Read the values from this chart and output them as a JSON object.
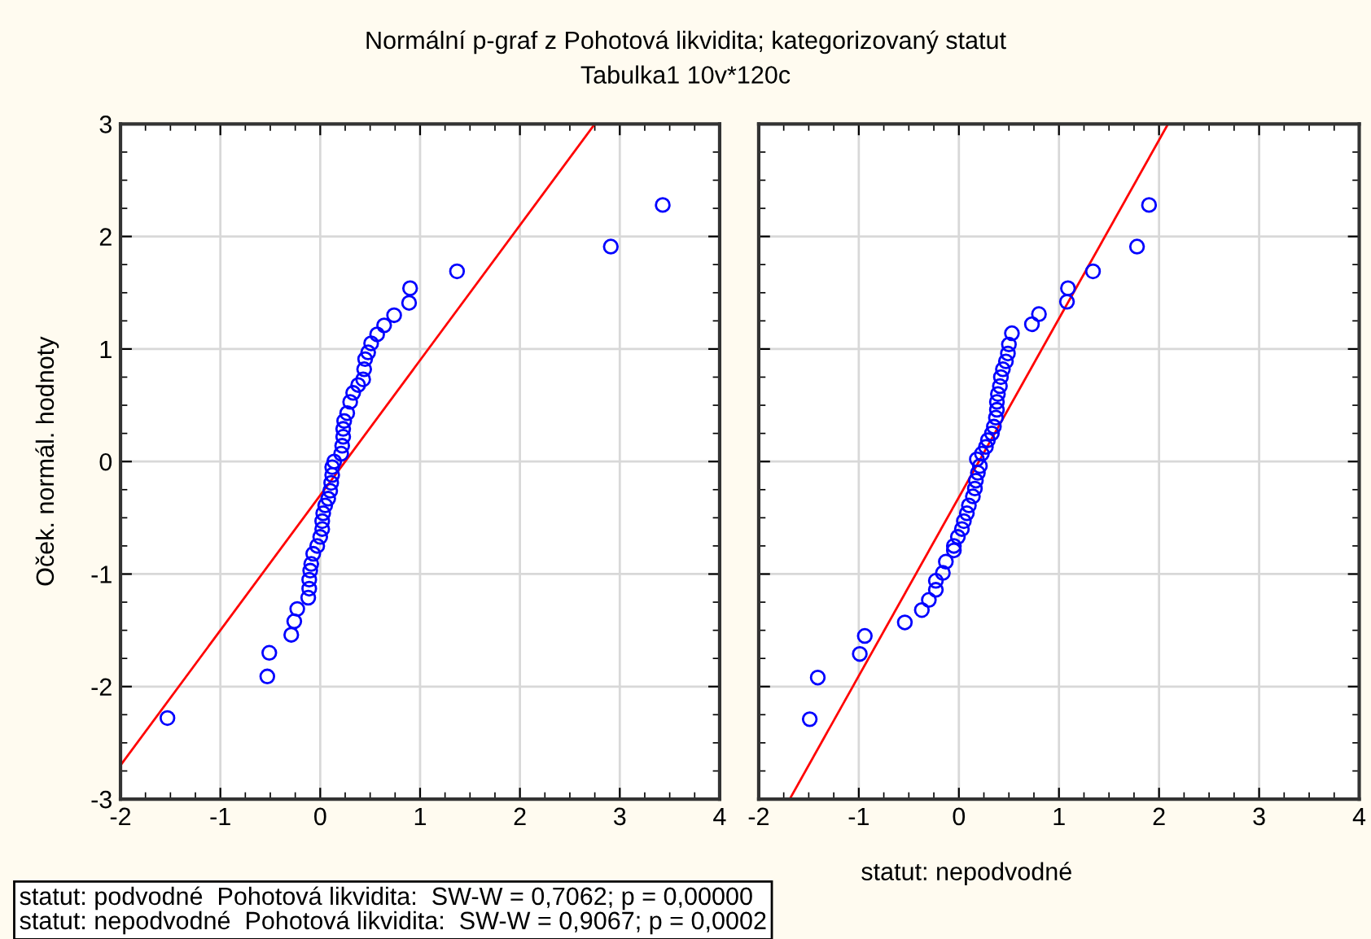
{
  "chart_data": [
    {
      "type": "scatter",
      "title": "Normální p-graf z Pohotová likvidita; kategorizovaný statut",
      "subtitle": "Tabulka1 10v*120c",
      "ylabel": "Oček. normál. hodnoty",
      "annotations": [
        "statut: podvodné  Pohotová likvidita:  SW-W = 0,7062; p = 0,00000",
        "statut: nepodvodné  Pohotová likvidita:  SW-W = 0,9067; p = 0,0002"
      ],
      "series": [
        {
          "marker": "circle",
          "color": "#0000ff",
          "x": [
            -1.53,
            -0.53,
            -0.51,
            -0.29,
            -0.26,
            -0.23,
            -0.12,
            -0.11,
            -0.11,
            -0.1,
            -0.09,
            -0.07,
            -0.03,
            0.0,
            0.02,
            0.02,
            0.03,
            0.05,
            0.08,
            0.1,
            0.11,
            0.12,
            0.12,
            0.14,
            0.21,
            0.22,
            0.23,
            0.23,
            0.24,
            0.27,
            0.3,
            0.33,
            0.38,
            0.43,
            0.44,
            0.45,
            0.48,
            0.51,
            0.57,
            0.64,
            0.74,
            0.89,
            0.9,
            1.37,
            2.91,
            3.43
          ],
          "values": [
            -2.28,
            -1.91,
            -1.7,
            -1.54,
            -1.42,
            -1.31,
            -1.21,
            -1.13,
            -1.05,
            -0.97,
            -0.91,
            -0.82,
            -0.75,
            -0.67,
            -0.6,
            -0.53,
            -0.46,
            -0.39,
            -0.33,
            -0.26,
            -0.19,
            -0.12,
            -0.05,
            0.0,
            0.07,
            0.14,
            0.22,
            0.29,
            0.36,
            0.43,
            0.53,
            0.61,
            0.68,
            0.73,
            0.82,
            0.91,
            0.97,
            1.05,
            1.13,
            1.21,
            1.3,
            1.41,
            1.54,
            1.69,
            1.91,
            2.28
          ]
        },
        {
          "type": "line",
          "color": "#ff0000",
          "x": [
            -2,
            2.75
          ],
          "values": [
            -2.7,
            3
          ]
        }
      ],
      "xlim": [
        -2,
        4
      ],
      "ylim": [
        -3,
        3
      ],
      "xticks": [
        -2,
        -1,
        0,
        1,
        2,
        3,
        4
      ],
      "yticks": [
        -3,
        -2,
        -1,
        0,
        1,
        2,
        3
      ],
      "grid": true
    },
    {
      "type": "scatter",
      "xlabel": "statut: nepodvodné",
      "series": [
        {
          "marker": "circle",
          "color": "#0000ff",
          "x": [
            -1.49,
            -1.41,
            -0.99,
            -0.94,
            -0.54,
            -0.37,
            -0.3,
            -0.23,
            -0.23,
            -0.16,
            -0.13,
            -0.05,
            -0.05,
            -0.01,
            0.03,
            0.05,
            0.08,
            0.1,
            0.14,
            0.16,
            0.17,
            0.19,
            0.21,
            0.18,
            0.23,
            0.27,
            0.29,
            0.33,
            0.35,
            0.37,
            0.38,
            0.38,
            0.39,
            0.41,
            0.42,
            0.44,
            0.47,
            0.49,
            0.5,
            0.53,
            0.73,
            0.8,
            1.08,
            1.09,
            1.34,
            1.78,
            1.9
          ],
          "values": [
            -2.29,
            -1.92,
            -1.71,
            -1.55,
            -1.43,
            -1.32,
            -1.23,
            -1.14,
            -1.06,
            -0.99,
            -0.89,
            -0.79,
            -0.75,
            -0.67,
            -0.6,
            -0.53,
            -0.46,
            -0.39,
            -0.31,
            -0.24,
            -0.17,
            -0.1,
            -0.04,
            0.02,
            0.07,
            0.13,
            0.19,
            0.25,
            0.31,
            0.39,
            0.46,
            0.53,
            0.6,
            0.67,
            0.75,
            0.82,
            0.89,
            0.96,
            1.04,
            1.14,
            1.22,
            1.31,
            1.42,
            1.54,
            1.69,
            1.91,
            2.28
          ]
        },
        {
          "type": "line",
          "color": "#ff0000",
          "x": [
            -1.69,
            2.09
          ],
          "values": [
            -3,
            3
          ]
        }
      ],
      "xlim": [
        -2,
        4
      ],
      "ylim": [
        -3,
        3
      ],
      "xticks": [
        -2,
        -1,
        0,
        1,
        2,
        3,
        4
      ],
      "yticks": [
        -3,
        -2,
        -1,
        0,
        1,
        2,
        3
      ],
      "grid": true,
      "tick_labels": "x"
    }
  ]
}
